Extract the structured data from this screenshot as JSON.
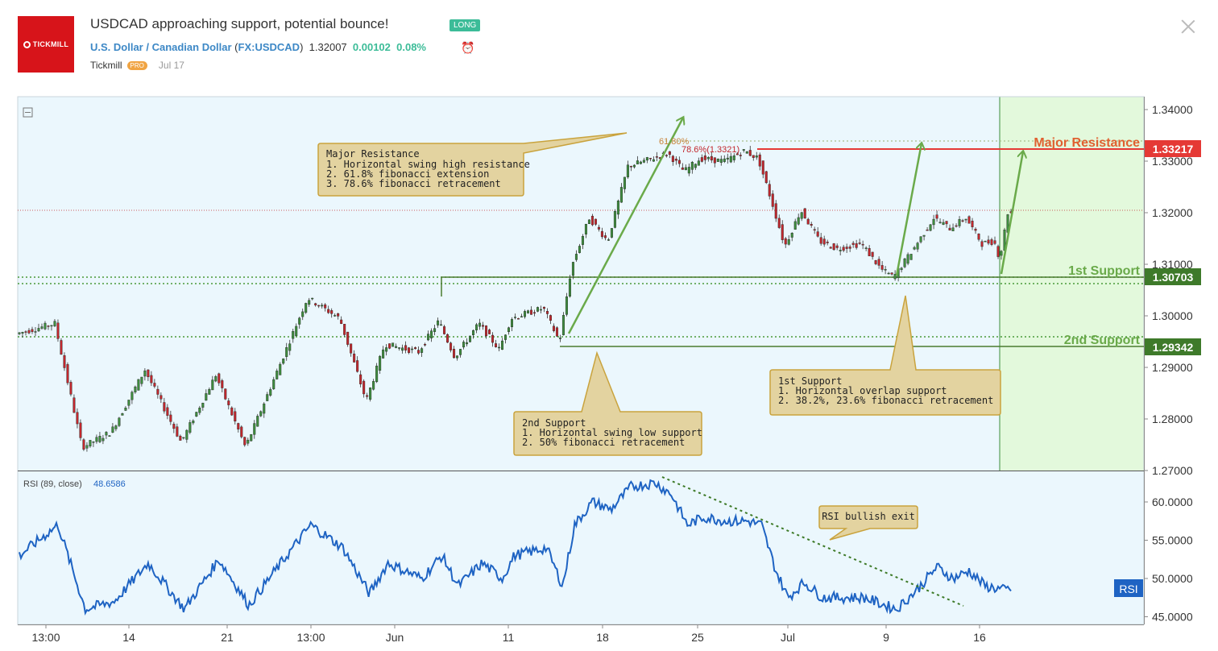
{
  "header": {
    "brand": "TICKMILL",
    "title": "USDCAD approaching support, potential bounce!",
    "badge": "LONG",
    "symbol_name": "U.S. Dollar / Canadian Dollar",
    "symbol_code": "FX:USDCAD",
    "price": "1.32007",
    "change": "0.00102",
    "change_pct": "0.08%",
    "author": "Tickmill",
    "author_badge": "PRO",
    "date": "Jul 17"
  },
  "colors": {
    "bg": "#ebf7fd",
    "up": "#3e8d3e",
    "down": "#c2272d",
    "resistance": "#e53935",
    "support": "#4a7c2e",
    "rsi_line": "#1e63c3",
    "zone": "#e3f9dc"
  },
  "chart_data": [
    {
      "type": "candlestick",
      "series": [
        {
          "name": "U.S. Dollar / Canadian Dollar"
        }
      ],
      "x_ticks": [
        "13:00",
        "14",
        "21",
        "13:00",
        "Jun",
        "11",
        "18",
        "25",
        "Jul",
        "9",
        "16"
      ],
      "y_ticks": [
        "1.34000",
        "1.33000",
        "1.32000",
        "1.31000",
        "1.30000",
        "1.29000",
        "1.28000",
        "1.27000"
      ],
      "ylim": [
        1.27,
        1.3425
      ],
      "levels": [
        {
          "label": "Major Resistance",
          "value": 1.33217,
          "tag": "1.33217"
        },
        {
          "label": "1st Support",
          "value": 1.30703,
          "tag": "1.30703"
        },
        {
          "label": "2nd Support",
          "value": 1.29342,
          "tag": "1.29342"
        }
      ],
      "fib_labels": [
        "61.80%",
        "78.6%(1.3321)"
      ],
      "annotations": [
        {
          "title": "Major Resistance",
          "lines": [
            "1. Horizontal swing high resistance",
            "2. 61.8% fibonacci extension",
            "3. 78.6% fibonacci retracement"
          ]
        },
        {
          "title": "2nd Support",
          "lines": [
            "1. Horizontal swing low support",
            "2. 50% fibonacci retracement"
          ]
        },
        {
          "title": "1st Support",
          "lines": [
            "1. Horizontal overlap support",
            "2. 38.2%, 23.6% fibonacci retracement"
          ]
        }
      ],
      "anchors": [
        [
          0,
          1.2965
        ],
        [
          48,
          1.2985
        ],
        [
          82,
          1.2745
        ],
        [
          118,
          1.2775
        ],
        [
          160,
          1.2895
        ],
        [
          205,
          1.2755
        ],
        [
          248,
          1.2885
        ],
        [
          285,
          1.2745
        ],
        [
          325,
          1.2895
        ],
        [
          362,
          1.3035
        ],
        [
          402,
          1.2995
        ],
        [
          435,
          1.2835
        ],
        [
          458,
          1.2945
        ],
        [
          500,
          1.293
        ],
        [
          525,
          1.299
        ],
        [
          545,
          1.292
        ],
        [
          575,
          1.2985
        ],
        [
          600,
          1.2935
        ],
        [
          615,
          1.2995
        ],
        [
          655,
          1.3015
        ],
        [
          675,
          1.295
        ],
        [
          690,
          1.3095
        ],
        [
          712,
          1.319
        ],
        [
          735,
          1.3145
        ],
        [
          760,
          1.329
        ],
        [
          790,
          1.3305
        ],
        [
          810,
          1.3315
        ],
        [
          830,
          1.328
        ],
        [
          850,
          1.3305
        ],
        [
          880,
          1.33
        ],
        [
          905,
          1.332
        ],
        [
          922,
          1.3305
        ],
        [
          940,
          1.3215
        ],
        [
          955,
          1.3135
        ],
        [
          975,
          1.3205
        ],
        [
          998,
          1.3145
        ],
        [
          1020,
          1.313
        ],
        [
          1050,
          1.314
        ],
        [
          1075,
          1.309
        ],
        [
          1090,
          1.3075
        ],
        [
          1115,
          1.313
        ],
        [
          1140,
          1.319
        ],
        [
          1160,
          1.317
        ],
        [
          1180,
          1.319
        ],
        [
          1200,
          1.314
        ],
        [
          1215,
          1.3145
        ],
        [
          1222,
          1.311
        ],
        [
          1232,
          1.32
        ]
      ]
    },
    {
      "type": "line",
      "series": [
        {
          "name": "RSI (89, close)",
          "last": "48.6586"
        }
      ],
      "y_ticks": [
        "60.0000",
        "55.0000",
        "50.0000",
        "45.0000"
      ],
      "ylim": [
        44,
        64
      ],
      "axis_tag": "RSI",
      "annotation": "RSI bullish exit",
      "anchors": [
        [
          0,
          53
        ],
        [
          48,
          57
        ],
        [
          82,
          46
        ],
        [
          118,
          47
        ],
        [
          160,
          52
        ],
        [
          205,
          46
        ],
        [
          248,
          52.5
        ],
        [
          285,
          46.5
        ],
        [
          325,
          52
        ],
        [
          362,
          57
        ],
        [
          402,
          54
        ],
        [
          435,
          48
        ],
        [
          458,
          52
        ],
        [
          500,
          50
        ],
        [
          525,
          53
        ],
        [
          545,
          49
        ],
        [
          575,
          52
        ],
        [
          600,
          50
        ],
        [
          615,
          53
        ],
        [
          655,
          54
        ],
        [
          675,
          49
        ],
        [
          690,
          57
        ],
        [
          712,
          60
        ],
        [
          735,
          59
        ],
        [
          760,
          62
        ],
        [
          790,
          62.5
        ],
        [
          810,
          61
        ],
        [
          830,
          57
        ],
        [
          850,
          58
        ],
        [
          880,
          57.5
        ],
        [
          905,
          57.5
        ],
        [
          922,
          57
        ],
        [
          940,
          51
        ],
        [
          955,
          47.5
        ],
        [
          975,
          49.5
        ],
        [
          998,
          47.5
        ],
        [
          1020,
          47.5
        ],
        [
          1050,
          47.5
        ],
        [
          1075,
          46.5
        ],
        [
          1090,
          46
        ],
        [
          1115,
          48.5
        ],
        [
          1140,
          51.5
        ],
        [
          1160,
          50
        ],
        [
          1180,
          51
        ],
        [
          1200,
          49
        ],
        [
          1215,
          48.7
        ],
        [
          1222,
          48.5
        ],
        [
          1232,
          48.6
        ]
      ]
    }
  ]
}
